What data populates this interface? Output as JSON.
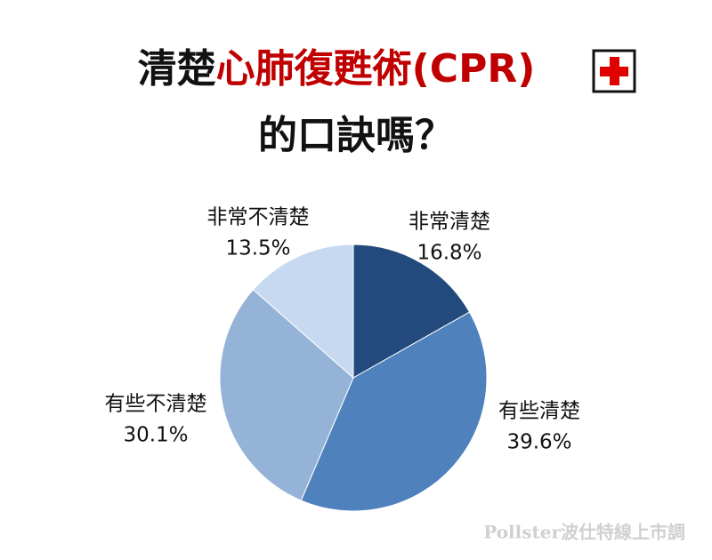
{
  "chart_data": {
    "type": "pie",
    "title_lines": [
      [
        {
          "text": "清楚",
          "color": "#111111"
        },
        {
          "text": "心肺復甦術(CPR)",
          "color": "#c00000"
        }
      ],
      [
        {
          "text": "的口訣嗎？",
          "color": "#111111"
        }
      ]
    ],
    "categories": [
      "非常清楚",
      "有些清楚",
      "有些不清楚",
      "非常不清楚"
    ],
    "values": [
      16.8,
      39.6,
      30.1,
      13.5
    ],
    "value_labels": [
      "16.8%",
      "39.6%",
      "30.1%",
      "13.5%"
    ],
    "colors": [
      "#234a7c",
      "#4f81bd",
      "#95b3d7",
      "#c6d9f0"
    ],
    "source": "Pollster波仕特線上市調"
  }
}
